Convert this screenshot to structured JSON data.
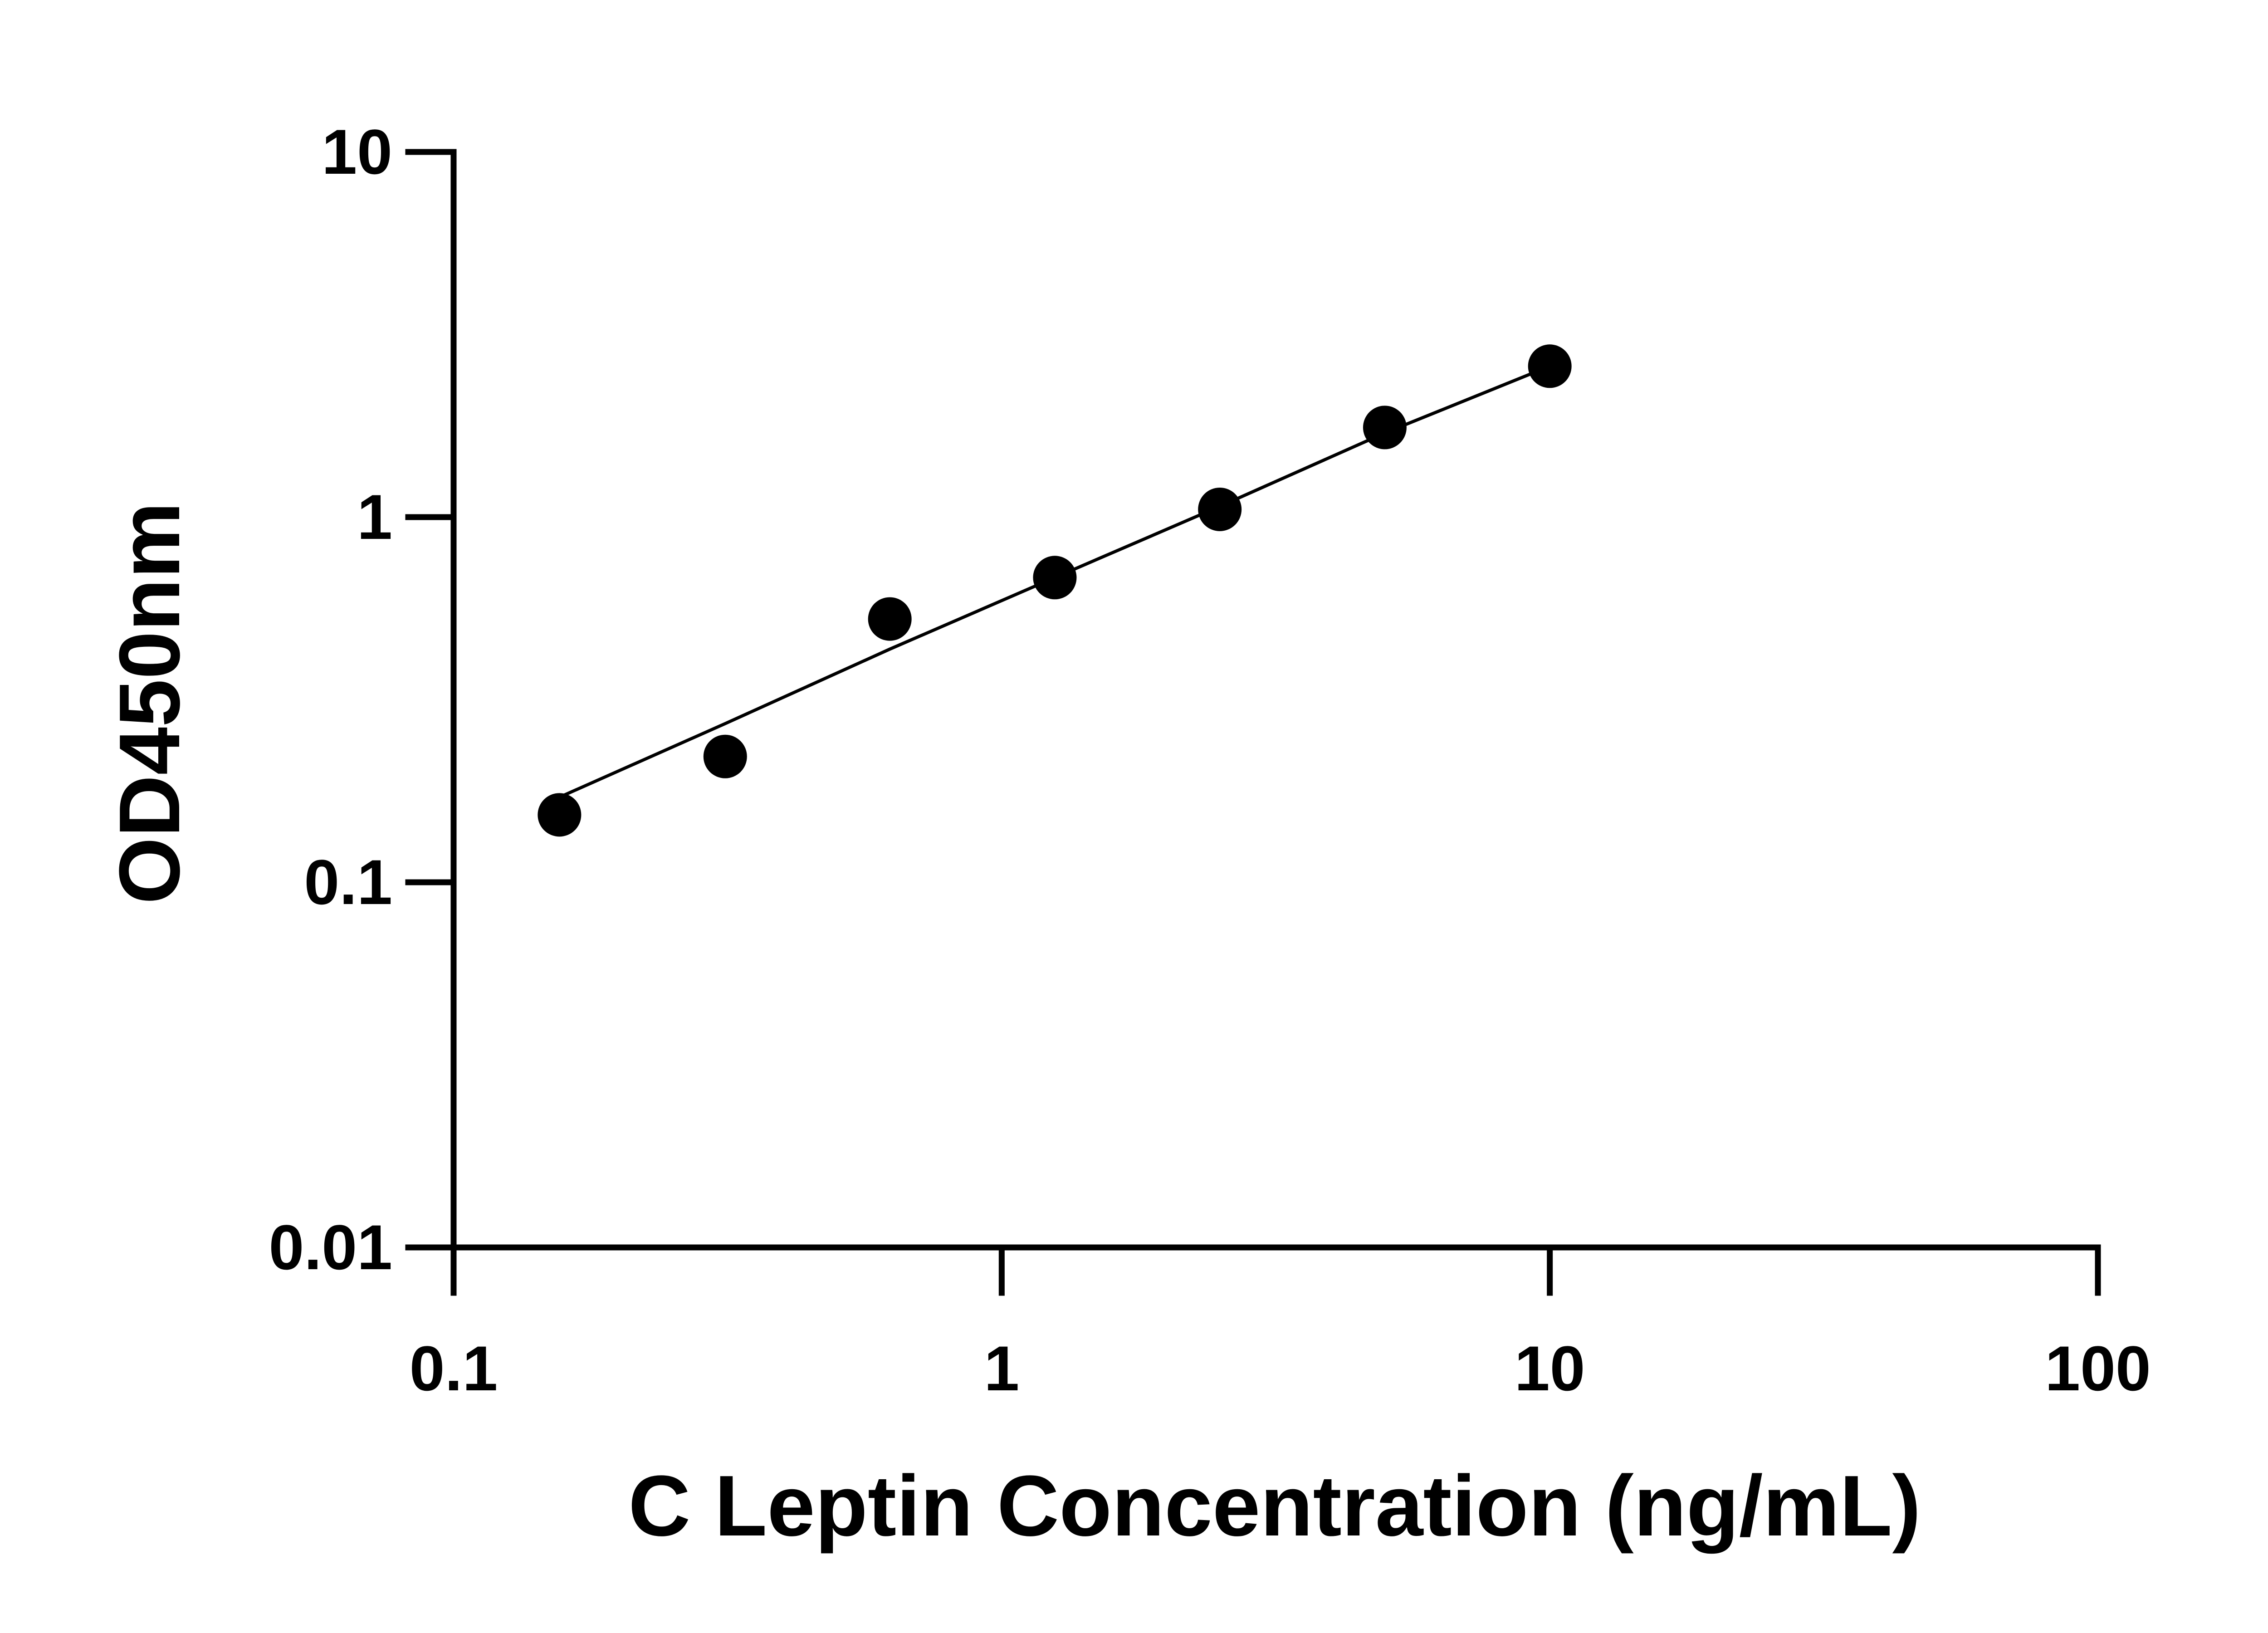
{
  "chart_data": {
    "type": "scatter",
    "title": "",
    "xlabel": "C Leptin Concentration (ng/mL)",
    "ylabel": "OD450nm",
    "x_scale": "log",
    "y_scale": "log",
    "xlim": [
      0.1,
      100
    ],
    "ylim": [
      0.01,
      10
    ],
    "x_ticks": [
      "0.1",
      "1",
      "10",
      "100"
    ],
    "y_ticks": [
      "10",
      "1",
      "0.1",
      "0.01"
    ],
    "grid": false,
    "legend": "none",
    "series": [
      {
        "x": [
          0.156,
          0.313,
          0.625,
          1.25,
          2.5,
          5,
          10
        ],
        "y": [
          0.153,
          0.221,
          0.526,
          0.683,
          1.05,
          1.76,
          2.59
        ]
      }
    ],
    "fit_line": {
      "x": [
        0.156,
        0.313,
        0.625,
        1.25,
        2.5,
        5,
        10
      ],
      "y": [
        0.171,
        0.272,
        0.435,
        0.683,
        1.07,
        1.7,
        2.59
      ]
    },
    "colors": {
      "marks": "#000000",
      "axes": "#000000"
    }
  }
}
